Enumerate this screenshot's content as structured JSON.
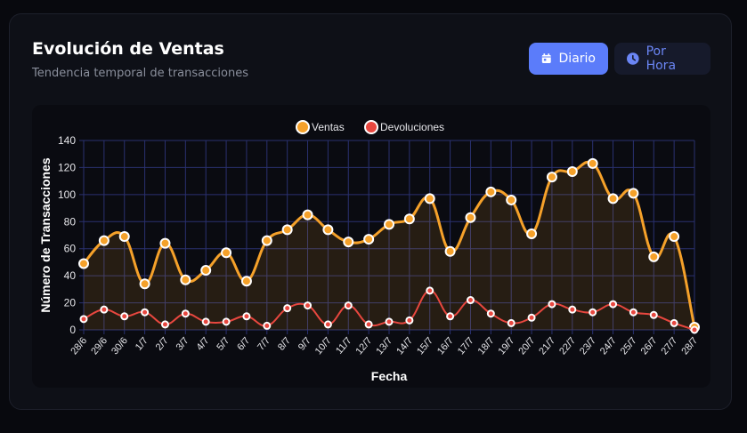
{
  "header": {
    "title": "Evolución de Ventas",
    "subtitle": "Tendencia temporal de transacciones"
  },
  "toggle": {
    "daily_label": "Diario",
    "hourly_label": "Por Hora",
    "active": "Diario",
    "daily_icon": "calendar-icon",
    "hourly_icon": "clock-icon"
  },
  "colors": {
    "ventas": "#f5a12a",
    "devoluciones": "#e8473f",
    "accent": "#5b7cfa",
    "grid": "#2a3170"
  },
  "chart_data": {
    "type": "line",
    "xlabel": "Fecha",
    "ylabel": "Número de Transacciones",
    "ylim": [
      0,
      140
    ],
    "yticks": [
      0,
      20,
      40,
      60,
      80,
      100,
      120,
      140
    ],
    "grid": true,
    "legend": "top",
    "categories": [
      "28/6",
      "29/6",
      "30/6",
      "1/7",
      "2/7",
      "3/7",
      "4/7",
      "5/7",
      "6/7",
      "7/7",
      "8/7",
      "9/7",
      "10/7",
      "11/7",
      "12/7",
      "13/7",
      "14/7",
      "15/7",
      "16/7",
      "17/7",
      "18/7",
      "19/7",
      "20/7",
      "21/7",
      "22/7",
      "23/7",
      "24/7",
      "25/7",
      "26/7",
      "27/7",
      "28/7"
    ],
    "series": [
      {
        "name": "Ventas",
        "values": [
          49,
          66,
          69,
          34,
          64,
          37,
          44,
          57,
          36,
          66,
          74,
          85,
          74,
          65,
          67,
          78,
          82,
          97,
          58,
          83,
          102,
          96,
          71,
          113,
          117,
          123,
          97,
          101,
          54,
          69,
          2
        ],
        "fill": true
      },
      {
        "name": "Devoluciones",
        "values": [
          8,
          15,
          10,
          13,
          4,
          12,
          6,
          6,
          10,
          3,
          16,
          18,
          4,
          18,
          4,
          6,
          7,
          29,
          10,
          22,
          12,
          5,
          9,
          19,
          15,
          13,
          19,
          13,
          11,
          5,
          0
        ],
        "fill": false
      }
    ]
  }
}
